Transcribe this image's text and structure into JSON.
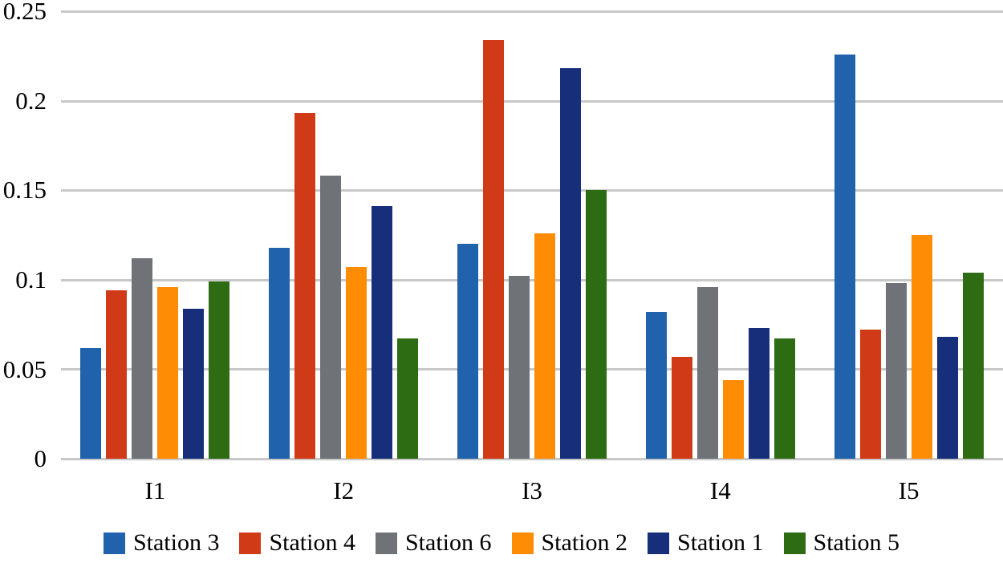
{
  "chart_data": {
    "type": "bar",
    "title": "",
    "categories": [
      "I1",
      "I2",
      "I3",
      "I4",
      "I5"
    ],
    "series": [
      {
        "name": "Station 3",
        "color": "#2062AC",
        "values": [
          0.062,
          0.118,
          0.12,
          0.082,
          0.226
        ]
      },
      {
        "name": "Station 4",
        "color": "#D03A17",
        "values": [
          0.094,
          0.193,
          0.234,
          0.057,
          0.072
        ]
      },
      {
        "name": "Station 6",
        "color": "#6F7377",
        "values": [
          0.112,
          0.158,
          0.102,
          0.096,
          0.098
        ]
      },
      {
        "name": "Station 2",
        "color": "#FF8C05",
        "values": [
          0.096,
          0.107,
          0.126,
          0.044,
          0.125
        ]
      },
      {
        "name": "Station 1",
        "color": "#172E7B",
        "values": [
          0.084,
          0.141,
          0.218,
          0.073,
          0.068
        ]
      },
      {
        "name": "Station 5",
        "color": "#2D6C13",
        "values": [
          0.099,
          0.067,
          0.15,
          0.067,
          0.104
        ]
      }
    ],
    "ylim": [
      0,
      0.25
    ],
    "ytick_step": 0.05,
    "yticks_display": [
      "0.25",
      "0.2",
      "0.15",
      "0.1",
      "0.05",
      "0"
    ],
    "grid": true,
    "gridline_color": "#c8c8c8",
    "legend_position": "bottom"
  }
}
